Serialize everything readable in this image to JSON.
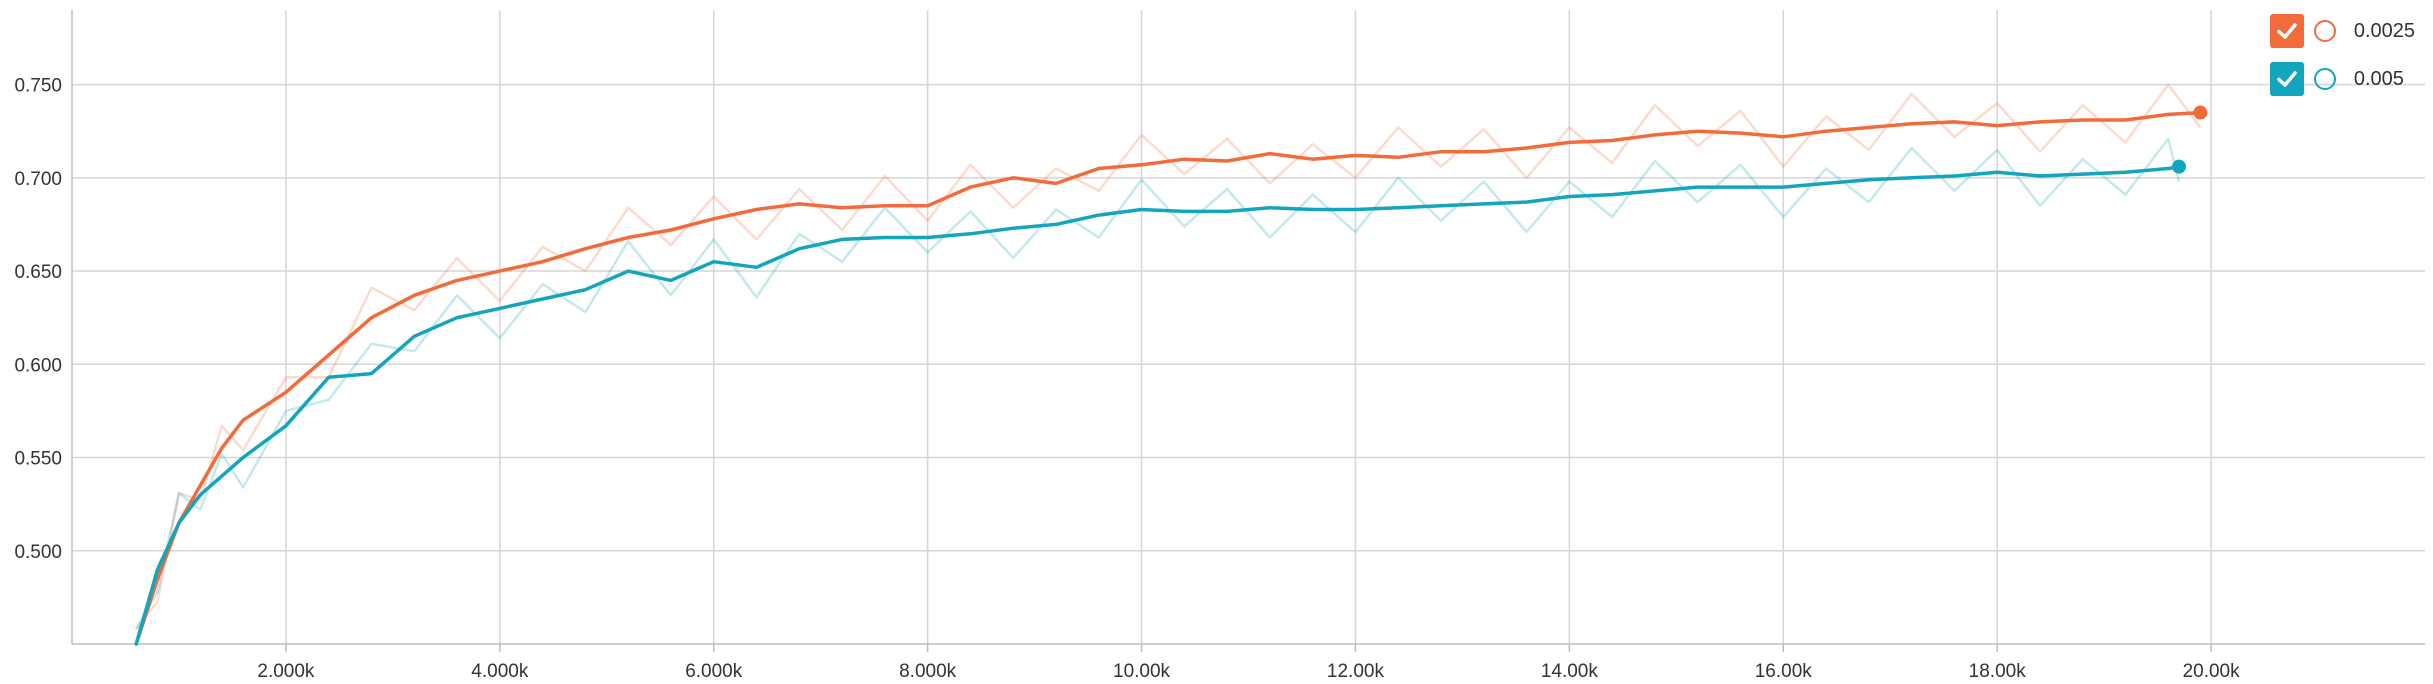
{
  "chart_data": {
    "type": "line",
    "title": "",
    "xlabel": "",
    "ylabel": "",
    "xlim": [
      0,
      22000
    ],
    "ylim": [
      0.45,
      0.79
    ],
    "x_ticks": [
      2000,
      4000,
      6000,
      8000,
      10000,
      12000,
      14000,
      16000,
      18000,
      20000
    ],
    "x_tick_labels": [
      "2.000k",
      "4.000k",
      "6.000k",
      "8.000k",
      "10.00k",
      "12.00k",
      "14.00k",
      "16.00k",
      "18.00k",
      "20.00k"
    ],
    "y_ticks": [
      0.5,
      0.55,
      0.6,
      0.65,
      0.7,
      0.75
    ],
    "y_tick_labels": [
      "0.500",
      "0.550",
      "0.600",
      "0.650",
      "0.700",
      "0.750"
    ],
    "grid": true,
    "legend_position": "top-right",
    "series": [
      {
        "name": "0.0025",
        "color": "#f26b3a",
        "x": [
          600,
          800,
          1000,
          1200,
          1400,
          1600,
          2000,
          2400,
          2800,
          3200,
          3600,
          4000,
          4400,
          4800,
          5200,
          5600,
          6000,
          6400,
          6800,
          7200,
          7600,
          8000,
          8400,
          8800,
          9200,
          9600,
          10000,
          10400,
          10800,
          11200,
          11600,
          12000,
          12400,
          12800,
          13200,
          13600,
          14000,
          14400,
          14800,
          15200,
          15600,
          16000,
          16400,
          16800,
          17200,
          17600,
          18000,
          18400,
          18800,
          19200,
          19600,
          19900
        ],
        "values": [
          0.45,
          0.485,
          0.515,
          0.535,
          0.555,
          0.57,
          0.585,
          0.605,
          0.625,
          0.637,
          0.645,
          0.65,
          0.655,
          0.662,
          0.668,
          0.672,
          0.678,
          0.683,
          0.686,
          0.684,
          0.685,
          0.685,
          0.695,
          0.7,
          0.697,
          0.705,
          0.707,
          0.71,
          0.709,
          0.713,
          0.71,
          0.712,
          0.711,
          0.714,
          0.714,
          0.716,
          0.719,
          0.72,
          0.723,
          0.725,
          0.724,
          0.722,
          0.725,
          0.727,
          0.729,
          0.73,
          0.728,
          0.73,
          0.731,
          0.731,
          0.734,
          0.735
        ]
      },
      {
        "name": "0.005",
        "color": "#12a5bd",
        "x": [
          600,
          800,
          1000,
          1200,
          1400,
          1600,
          2000,
          2400,
          2800,
          3200,
          3600,
          4000,
          4400,
          4800,
          5200,
          5600,
          6000,
          6400,
          6800,
          7200,
          7600,
          8000,
          8400,
          8800,
          9200,
          9600,
          10000,
          10400,
          10800,
          11200,
          11600,
          12000,
          12400,
          12800,
          13200,
          13600,
          14000,
          14400,
          14800,
          15200,
          15600,
          16000,
          16400,
          16800,
          17200,
          17600,
          18000,
          18400,
          18800,
          19200,
          19600,
          19700
        ],
        "values": [
          0.45,
          0.49,
          0.515,
          0.53,
          0.54,
          0.55,
          0.567,
          0.593,
          0.595,
          0.615,
          0.625,
          0.63,
          0.635,
          0.64,
          0.65,
          0.645,
          0.655,
          0.652,
          0.662,
          0.667,
          0.668,
          0.668,
          0.67,
          0.673,
          0.675,
          0.68,
          0.683,
          0.682,
          0.682,
          0.684,
          0.683,
          0.683,
          0.684,
          0.685,
          0.686,
          0.687,
          0.69,
          0.691,
          0.693,
          0.695,
          0.695,
          0.695,
          0.697,
          0.699,
          0.7,
          0.701,
          0.703,
          0.701,
          0.702,
          0.703,
          0.705,
          0.706
        ]
      }
    ]
  },
  "legend": [
    {
      "label": "0.0025",
      "color": "#f26b3a"
    },
    {
      "label": "0.005",
      "color": "#12a5bd"
    }
  ]
}
